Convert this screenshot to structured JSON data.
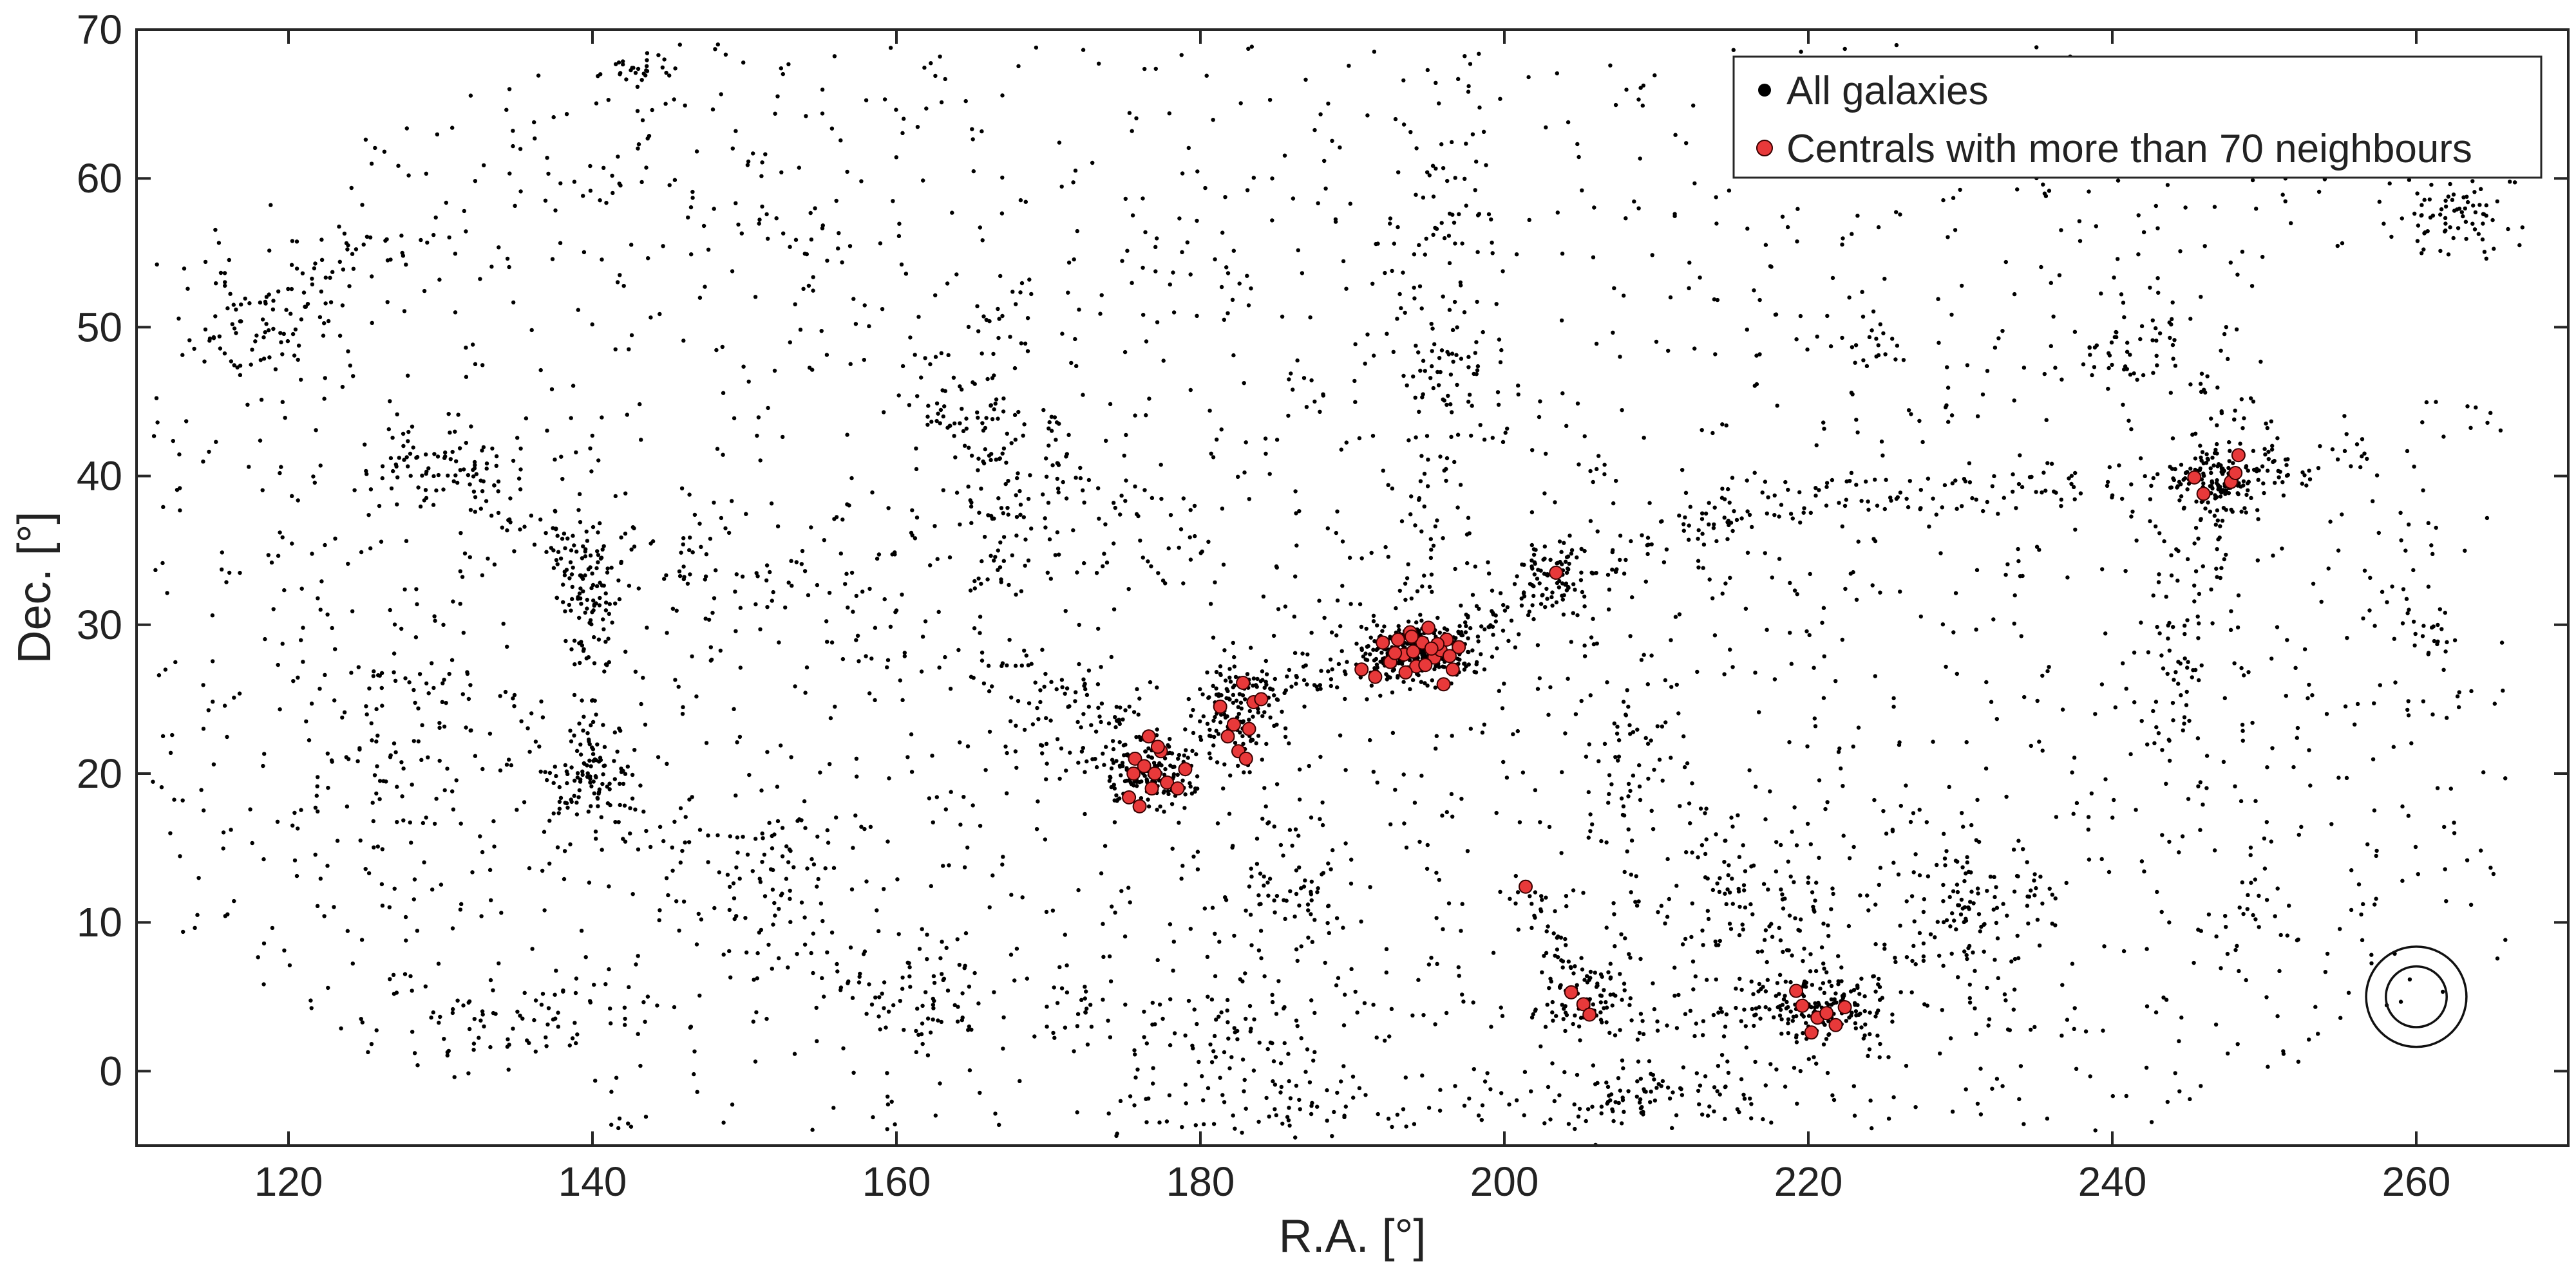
{
  "chart_data": {
    "type": "scatter",
    "title": "",
    "xlabel": "R.A. [°]",
    "ylabel": "Dec. [°]",
    "xlim": [
      110,
      270
    ],
    "ylim": [
      -5,
      70
    ],
    "xticks": [
      120,
      140,
      160,
      180,
      200,
      220,
      240,
      260
    ],
    "yticks": [
      0,
      10,
      20,
      30,
      40,
      50,
      60,
      70
    ],
    "grid": false,
    "legend_position": "top-right",
    "legend": [
      {
        "label": "All galaxies",
        "color": "#000000"
      },
      {
        "label": "Centrals with more than 70 neighbours",
        "color": "#e8393a"
      }
    ],
    "annotations": [
      {
        "shape": "concentric-circles",
        "x": 260,
        "y": 5,
        "radii_deg": [
          2.0,
          3.3
        ]
      }
    ],
    "series": [
      {
        "name": "All galaxies",
        "color": "#000000",
        "marker_size": 3.2,
        "clusters": [
          {
            "x": 194.5,
            "y": 28.0,
            "sx": 1.8,
            "sy": 1.0,
            "n": 260
          },
          {
            "x": 176.5,
            "y": 20.0,
            "sx": 1.6,
            "sy": 1.2,
            "n": 160
          },
          {
            "x": 182.5,
            "y": 24.0,
            "sx": 1.5,
            "sy": 2.0,
            "n": 120
          },
          {
            "x": 247.0,
            "y": 40.0,
            "sx": 1.4,
            "sy": 1.2,
            "n": 120
          },
          {
            "x": 221.0,
            "y": 4.0,
            "sx": 2.2,
            "sy": 1.2,
            "n": 130
          },
          {
            "x": 205.5,
            "y": 5.0,
            "sx": 1.4,
            "sy": 1.5,
            "n": 70
          },
          {
            "x": 203.5,
            "y": 33.5,
            "sx": 1.0,
            "sy": 1.2,
            "n": 60
          },
          {
            "x": 140.0,
            "y": 34.0,
            "sx": 1.4,
            "sy": 2.5,
            "n": 80
          },
          {
            "x": 140.0,
            "y": 19.5,
            "sx": 1.4,
            "sy": 1.8,
            "n": 80
          },
          {
            "x": 118.0,
            "y": 50.0,
            "sx": 2.5,
            "sy": 2.0,
            "n": 60
          },
          {
            "x": 129.0,
            "y": 41.0,
            "sx": 3.0,
            "sy": 1.5,
            "n": 70
          },
          {
            "x": 172.0,
            "y": 24.0,
            "sx": 2.5,
            "sy": 2.0,
            "n": 70
          },
          {
            "x": 165.0,
            "y": 45.0,
            "sx": 3.0,
            "sy": 4.0,
            "n": 80
          },
          {
            "x": 186.0,
            "y": 12.0,
            "sx": 2.5,
            "sy": 3.0,
            "n": 70
          },
          {
            "x": 182.0,
            "y": 2.0,
            "sx": 3.0,
            "sy": 2.0,
            "n": 60
          },
          {
            "x": 210.0,
            "y": -1.5,
            "sx": 4.0,
            "sy": 1.3,
            "n": 80
          },
          {
            "x": 216.0,
            "y": 11.0,
            "sx": 4.0,
            "sy": 4.0,
            "n": 120
          },
          {
            "x": 230.0,
            "y": 13.0,
            "sx": 3.0,
            "sy": 3.0,
            "n": 60
          },
          {
            "x": 197.0,
            "y": 47.0,
            "sx": 1.5,
            "sy": 2.0,
            "n": 40
          },
          {
            "x": 196.0,
            "y": 58.0,
            "sx": 1.5,
            "sy": 4.0,
            "n": 50
          },
          {
            "x": 262.0,
            "y": 58.0,
            "sx": 2.0,
            "sy": 1.5,
            "n": 70
          },
          {
            "x": 241.0,
            "y": 48.0,
            "sx": 1.5,
            "sy": 1.5,
            "n": 30
          },
          {
            "x": 143.0,
            "y": 67.5,
            "sx": 1.2,
            "sy": 0.5,
            "n": 25
          },
          {
            "x": 126.0,
            "y": 20.0,
            "sx": 3.0,
            "sy": 4.0,
            "n": 80
          },
          {
            "x": 152.0,
            "y": 14.0,
            "sx": 3.0,
            "sy": 3.0,
            "n": 70
          },
          {
            "x": 160.0,
            "y": 5.0,
            "sx": 3.5,
            "sy": 2.0,
            "n": 60
          },
          {
            "x": 135.0,
            "y": 3.0,
            "sx": 4.0,
            "sy": 1.5,
            "n": 60
          },
          {
            "x": 224.0,
            "y": 49.0,
            "sx": 1.5,
            "sy": 1.5,
            "n": 25
          },
          {
            "x": 167.0,
            "y": 36.0,
            "sx": 3.0,
            "sy": 2.0,
            "n": 50
          },
          {
            "x": 208.0,
            "y": 22.0,
            "sx": 2.0,
            "sy": 4.0,
            "n": 60
          },
          {
            "x": 245.0,
            "y": 30.0,
            "sx": 1.5,
            "sy": 6.0,
            "n": 40
          }
        ],
        "filaments": [
          {
            "from": [
              196,
              28
            ],
            "to": [
              215,
              38
            ],
            "n": 90,
            "w": 0.8
          },
          {
            "from": [
              215,
              38
            ],
            "to": [
              247,
              40
            ],
            "n": 110,
            "w": 1.0
          },
          {
            "from": [
              247,
              40
            ],
            "to": [
              258,
              41
            ],
            "n": 40,
            "w": 0.8
          },
          {
            "from": [
              258,
              34
            ],
            "to": [
              262,
              28
            ],
            "n": 25,
            "w": 0.6
          },
          {
            "from": [
              247,
              40
            ],
            "to": [
              244,
              20
            ],
            "n": 50,
            "w": 1.0
          },
          {
            "from": [
              183,
              26
            ],
            "to": [
              194,
              28
            ],
            "n": 70,
            "w": 0.8
          },
          {
            "from": [
              176,
              20
            ],
            "to": [
              182,
              24
            ],
            "n": 30,
            "w": 0.8
          },
          {
            "from": [
              194,
              28
            ],
            "to": [
              196,
              47
            ],
            "n": 60,
            "w": 1.5
          },
          {
            "from": [
              194,
              28
            ],
            "to": [
              203,
              33
            ],
            "n": 40,
            "w": 0.6
          },
          {
            "from": [
              201,
              12
            ],
            "to": [
              205,
              5
            ],
            "n": 40,
            "w": 0.8
          },
          {
            "from": [
              205,
              5
            ],
            "to": [
              221,
              4
            ],
            "n": 60,
            "w": 1.0
          },
          {
            "from": [
              221,
              4
            ],
            "to": [
              237,
              14
            ],
            "n": 60,
            "w": 1.2
          },
          {
            "from": [
              140,
              34
            ],
            "to": [
              140,
              19
            ],
            "n": 50,
            "w": 0.8
          },
          {
            "from": [
              140,
              34
            ],
            "to": [
              130,
              41
            ],
            "n": 40,
            "w": 1.0
          },
          {
            "from": [
              118,
              50
            ],
            "to": [
              128,
              57
            ],
            "n": 40,
            "w": 1.2
          },
          {
            "from": [
              145,
              36
            ],
            "to": [
              172,
              24
            ],
            "n": 70,
            "w": 1.5
          },
          {
            "from": [
              126,
              28
            ],
            "to": [
              150,
              14
            ],
            "n": 70,
            "w": 1.5
          },
          {
            "from": [
              160,
              5
            ],
            "to": [
              175,
              4
            ],
            "n": 40,
            "w": 1.2
          },
          {
            "from": [
              137,
              62
            ],
            "to": [
              155,
              55
            ],
            "n": 40,
            "w": 1.8
          },
          {
            "from": [
              165,
              45
            ],
            "to": [
              181,
              34
            ],
            "n": 60,
            "w": 1.5
          },
          {
            "from": [
              174,
              -3
            ],
            "to": [
              210,
              -2
            ],
            "n": 80,
            "w": 1.0
          },
          {
            "from": [
              230,
              13
            ],
            "to": [
              234,
              -2
            ],
            "n": 30,
            "w": 1.0
          },
          {
            "from": [
              240,
              53
            ],
            "to": [
              250,
              43
            ],
            "n": 30,
            "w": 1.0
          },
          {
            "from": [
              250,
              14
            ],
            "to": [
              248,
              7
            ],
            "n": 20,
            "w": 0.8
          }
        ],
        "background": {
          "n": 2400,
          "ra_min": 111,
          "ra_max": 266,
          "dec_min": -4,
          "dec_max": 69
        }
      },
      {
        "name": "Centrals with more than 70 neighbours",
        "color": "#e8393a",
        "marker_size": 10,
        "x": [
          175.3,
          175.7,
          176.0,
          176.3,
          176.6,
          177.0,
          177.4,
          177.8,
          178.5,
          179.0,
          175.6,
          176.8,
          177.2,
          181.3,
          181.8,
          182.2,
          182.5,
          182.8,
          183.2,
          183.5,
          183.0,
          184.0,
          190.6,
          191.5,
          192.0,
          192.5,
          193.0,
          193.4,
          193.8,
          194.2,
          194.6,
          195.0,
          195.4,
          195.8,
          196.2,
          196.6,
          197.0,
          193.5,
          194.0,
          194.8,
          195.6,
          196.0,
          192.8,
          193.9,
          195.2,
          196.4,
          203.4,
          201.4,
          204.4,
          205.2,
          205.6,
          219.2,
          219.6,
          220.2,
          220.6,
          221.2,
          221.8,
          222.4,
          245.4,
          246.0,
          247.8,
          248.3,
          248.1
        ],
        "y": [
          18.4,
          21.0,
          17.8,
          20.5,
          22.5,
          20.0,
          21.5,
          19.4,
          19.0,
          20.3,
          20.0,
          19.0,
          21.8,
          24.5,
          22.5,
          23.3,
          21.5,
          26.1,
          23.0,
          24.8,
          21.0,
          25.0,
          27.0,
          26.5,
          28.8,
          27.5,
          29.0,
          28.0,
          29.5,
          27.2,
          28.8,
          29.8,
          27.8,
          28.3,
          29.0,
          27.0,
          28.5,
          26.8,
          28.2,
          27.3,
          28.7,
          26.0,
          28.1,
          29.2,
          28.4,
          27.9,
          33.5,
          12.4,
          5.3,
          4.5,
          3.8,
          5.4,
          4.4,
          2.6,
          3.6,
          3.9,
          3.1,
          4.3,
          39.9,
          38.8,
          39.6,
          41.4,
          40.2
        ]
      }
    ]
  }
}
